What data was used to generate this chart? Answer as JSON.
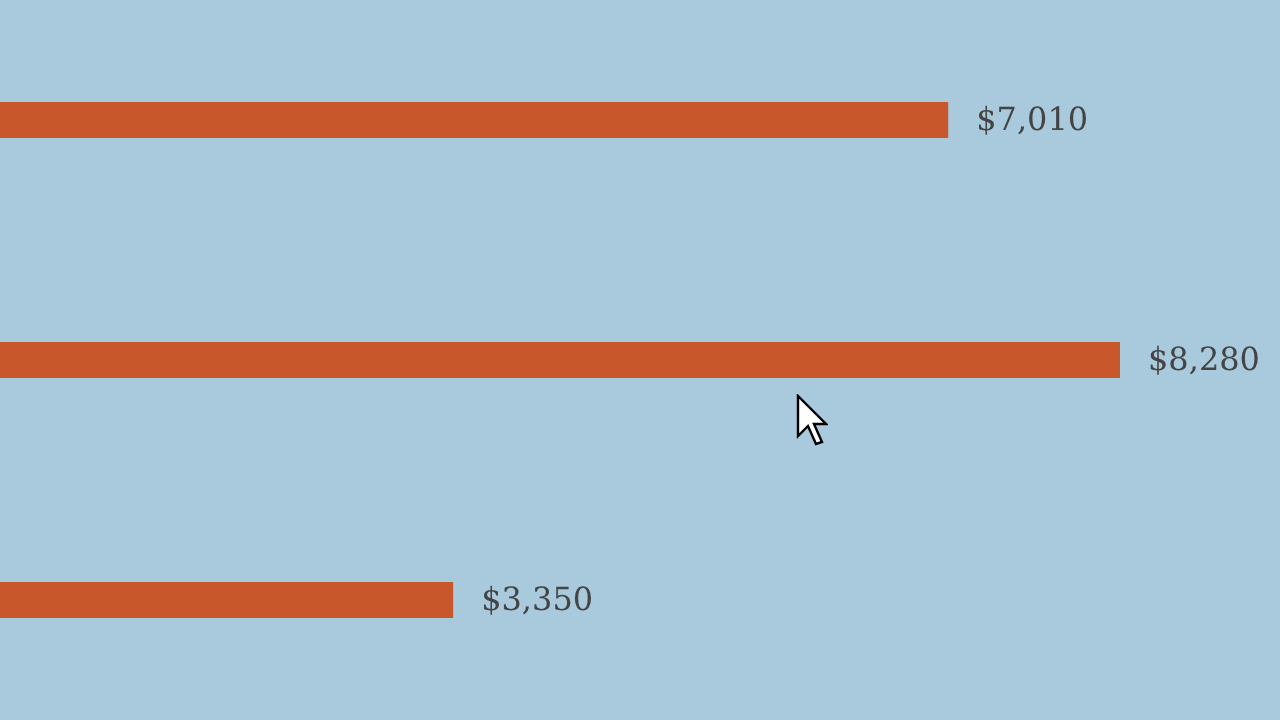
{
  "chart_data": {
    "type": "bar",
    "orientation": "horizontal",
    "categories": [
      null,
      null,
      null
    ],
    "values": [
      7010,
      8280,
      3350
    ],
    "value_labels": [
      "$7,010",
      "$8,280",
      "$3,350"
    ],
    "color": "#c8572c"
  }
}
